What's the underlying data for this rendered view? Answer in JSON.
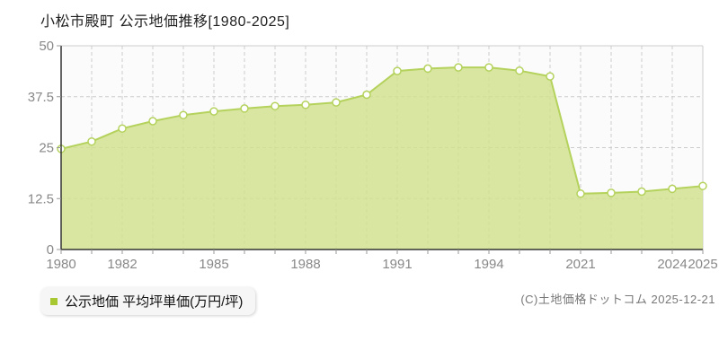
{
  "title": "小松市殿町 公示地価推移[1980-2025]",
  "legend": {
    "label": "公示地価 平均坪単価(万円/坪)",
    "marker_color": "#a8c832"
  },
  "copyright": "(C)土地価格ドットコム 2025-12-21",
  "chart_data": {
    "type": "area",
    "title": "小松市殿町 公示地価推移[1980-2025]",
    "series_name": "公示地価 平均坪単価(万円/坪)",
    "categories": [
      "1980",
      "1981",
      "1982",
      "1983",
      "1984",
      "1985",
      "1986",
      "1987",
      "1988",
      "1989",
      "1990",
      "1991",
      "1992",
      "1993",
      "1994",
      "1995",
      "1996",
      "2021",
      "2022",
      "2023",
      "2024",
      "2025"
    ],
    "values": [
      24.7,
      26.5,
      29.7,
      31.5,
      33.0,
      33.9,
      34.6,
      35.2,
      35.5,
      36.1,
      38.0,
      43.8,
      44.4,
      44.7,
      44.7,
      43.9,
      42.5,
      13.7,
      13.9,
      14.2,
      14.9,
      15.6
    ],
    "ylabel": "万円/坪",
    "ylim": [
      0,
      50
    ],
    "yticks": [
      0,
      12.5,
      25,
      37.5,
      50
    ],
    "ytick_labels": [
      "0",
      "12.5",
      "25",
      "37.5",
      "50"
    ],
    "xticks": [
      {
        "index": 0,
        "label": "1980"
      },
      {
        "index": 2,
        "label": "1982"
      },
      {
        "index": 5,
        "label": "1985"
      },
      {
        "index": 8,
        "label": "1988"
      },
      {
        "index": 11,
        "label": "1991"
      },
      {
        "index": 14,
        "label": "1994"
      },
      {
        "index": 17,
        "label": "2021"
      },
      {
        "index": 20,
        "label": "2024"
      },
      {
        "index": 21,
        "label": "2025"
      }
    ],
    "grid": true,
    "legend_position": "bottom-left",
    "colors": {
      "area_fill": "#cfe18c",
      "area_opacity": 0.8,
      "line": "#b4d25c",
      "marker_fill": "#ffffff",
      "marker_stroke": "#b4d25c",
      "grid": "#cccccc",
      "plot_border": "#cccccc",
      "axis": "#333333",
      "tick": "#999999",
      "tick_label": "#888888",
      "plot_bg": "#fbfbfb"
    }
  }
}
